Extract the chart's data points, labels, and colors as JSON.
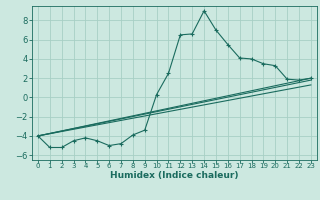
{
  "xlabel": "Humidex (Indice chaleur)",
  "background_color": "#cce8e0",
  "grid_color": "#a8cfc5",
  "line_color": "#1a6b5e",
  "xlim": [
    -0.5,
    23.5
  ],
  "ylim": [
    -6.5,
    9.5
  ],
  "yticks": [
    -6,
    -4,
    -2,
    0,
    2,
    4,
    6,
    8
  ],
  "xticks": [
    0,
    1,
    2,
    3,
    4,
    5,
    6,
    7,
    8,
    9,
    10,
    11,
    12,
    13,
    14,
    15,
    16,
    17,
    18,
    19,
    20,
    21,
    22,
    23
  ],
  "line1_x": [
    0,
    1,
    2,
    3,
    4,
    5,
    6,
    7,
    8,
    9,
    10,
    11,
    12,
    13,
    14,
    15,
    16,
    17,
    18,
    19,
    20,
    21,
    22,
    23
  ],
  "line1_y": [
    -4.0,
    -5.2,
    -5.2,
    -4.5,
    -4.2,
    -4.5,
    -5.0,
    -4.8,
    -3.9,
    -3.4,
    0.3,
    2.5,
    6.5,
    6.6,
    9.0,
    7.0,
    5.5,
    4.1,
    4.0,
    3.5,
    3.3,
    1.9,
    1.8,
    2.0
  ],
  "line2_x": [
    0,
    23
  ],
  "line2_y": [
    -4.0,
    2.0
  ],
  "line3_x": [
    0,
    23
  ],
  "line3_y": [
    -4.0,
    1.8
  ],
  "line4_x": [
    0,
    23
  ],
  "line4_y": [
    -4.0,
    1.3
  ]
}
